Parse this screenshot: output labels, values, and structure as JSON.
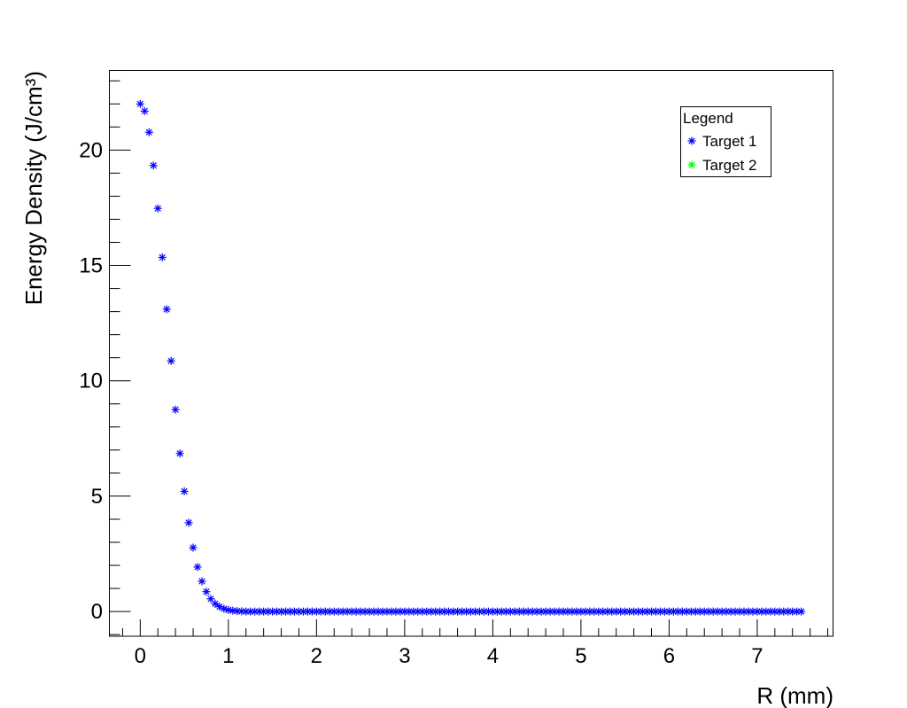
{
  "chart_data": {
    "type": "scatter",
    "title": "",
    "xlabel": "R (mm)",
    "ylabel": "Energy Density (J/cm³)",
    "xlim": [
      -0.35,
      7.86
    ],
    "ylim": [
      -1.07,
      23.45
    ],
    "x_ticks": [
      0,
      1,
      2,
      3,
      4,
      5,
      6,
      7
    ],
    "y_ticks": [
      0,
      5,
      10,
      15,
      20
    ],
    "grid": false,
    "legend": {
      "title": "Legend",
      "placement": "top-right",
      "entries": [
        {
          "label": "Target 1",
          "color": "#0000ff",
          "marker": "asterisk"
        },
        {
          "label": "Target 2",
          "color": "#00ff00",
          "marker": "asterisk"
        }
      ]
    },
    "series": [
      {
        "name": "Target 1",
        "color": "#0000ff",
        "marker": "asterisk",
        "x": [
          0,
          0.05,
          0.1,
          0.15,
          0.2,
          0.25,
          0.3,
          0.35,
          0.4,
          0.45,
          0.5,
          0.55,
          0.6,
          0.65,
          0.7,
          0.75,
          0.8,
          0.85,
          0.9,
          0.95,
          1,
          1.05,
          1.1,
          1.15,
          1.2,
          1.25,
          1.3,
          1.35,
          1.4,
          1.45,
          1.5,
          1.55,
          1.6,
          1.65,
          1.7,
          1.75,
          1.8,
          1.85,
          1.9,
          1.95,
          2,
          2.05,
          2.1,
          2.15,
          2.2,
          2.25,
          2.3,
          2.35,
          2.4,
          2.45,
          2.5,
          2.55,
          2.6,
          2.65,
          2.7,
          2.75,
          2.8,
          2.85,
          2.9,
          2.95,
          3,
          3.05,
          3.1,
          3.15,
          3.2,
          3.25,
          3.3,
          3.35,
          3.4,
          3.45,
          3.5,
          3.55,
          3.6,
          3.65,
          3.7,
          3.75,
          3.8,
          3.85,
          3.9,
          3.95,
          4,
          4.05,
          4.1,
          4.15,
          4.2,
          4.25,
          4.3,
          4.35,
          4.4,
          4.45,
          4.5,
          4.55,
          4.6,
          4.65,
          4.7,
          4.75,
          4.8,
          4.85,
          4.9,
          4.95,
          5,
          5.05,
          5.1,
          5.15,
          5.2,
          5.25,
          5.3,
          5.35,
          5.4,
          5.45,
          5.5,
          5.55,
          5.6,
          5.65,
          5.7,
          5.75,
          5.8,
          5.85,
          5.9,
          5.95,
          6,
          6.05,
          6.1,
          6.15,
          6.2,
          6.25,
          6.3,
          6.35,
          6.4,
          6.45,
          6.5,
          6.55,
          6.6,
          6.65,
          6.7,
          6.75,
          6.8,
          6.85,
          6.9,
          6.95,
          7,
          7.05,
          7.1,
          7.15,
          7.2,
          7.25,
          7.3,
          7.35,
          7.4,
          7.45,
          7.5
        ],
        "y": [
          22.0,
          21.69,
          20.77,
          19.33,
          17.47,
          15.35,
          13.1,
          10.86,
          8.75,
          6.85,
          5.21,
          3.85,
          2.77,
          1.93,
          1.31,
          0.86,
          0.55,
          0.34,
          0.21,
          0.12,
          0.07,
          0.04,
          0.02,
          0.01,
          0,
          0,
          0,
          0,
          0,
          0,
          0,
          0,
          0,
          0,
          0,
          0,
          0,
          0,
          0,
          0,
          0,
          0,
          0,
          0,
          0,
          0,
          0,
          0,
          0,
          0,
          0,
          0,
          0,
          0,
          0,
          0,
          0,
          0,
          0,
          0,
          0,
          0,
          0,
          0,
          0,
          0,
          0,
          0,
          0,
          0,
          0,
          0,
          0,
          0,
          0,
          0,
          0,
          0,
          0,
          0,
          0,
          0,
          0,
          0,
          0,
          0,
          0,
          0,
          0,
          0,
          0,
          0,
          0,
          0,
          0,
          0,
          0,
          0,
          0,
          0,
          0,
          0,
          0,
          0,
          0,
          0,
          0,
          0,
          0,
          0,
          0,
          0,
          0,
          0,
          0,
          0,
          0,
          0,
          0,
          0,
          0,
          0,
          0,
          0,
          0,
          0,
          0,
          0,
          0,
          0,
          0,
          0,
          0,
          0,
          0,
          0,
          0,
          0,
          0,
          0,
          0,
          0,
          0,
          0,
          0,
          0,
          0,
          0,
          0,
          0,
          0
        ]
      }
    ]
  }
}
